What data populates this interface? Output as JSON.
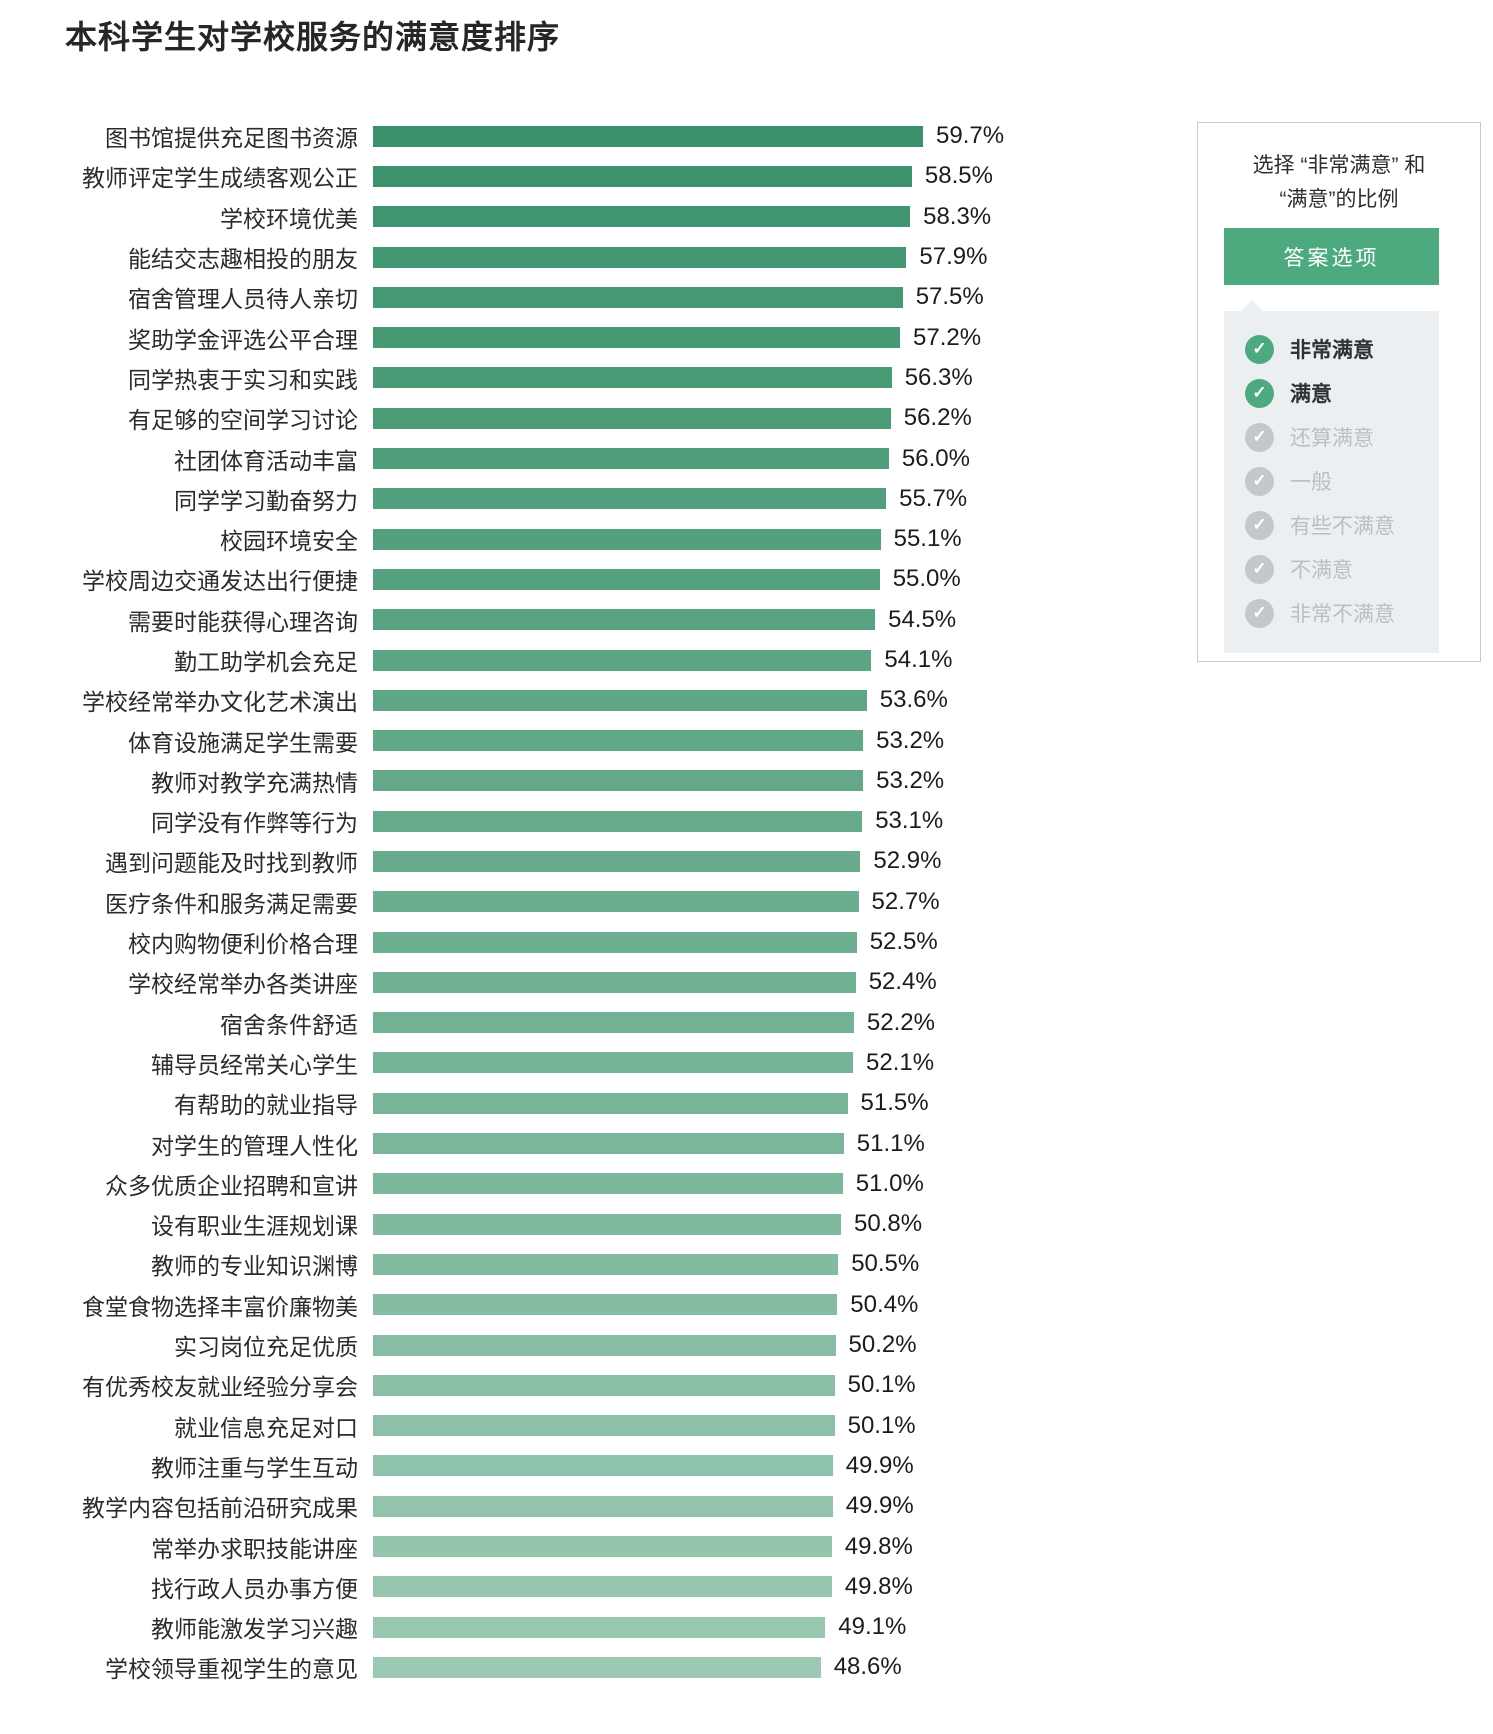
{
  "title": "本科学生对学校服务的满意度排序",
  "chart_data": {
    "type": "bar",
    "orientation": "horizontal",
    "title": "本科学生对学校服务的满意度排序",
    "xlabel": "",
    "ylabel": "",
    "unit": "%",
    "xlim": [
      0,
      60
    ],
    "grid": false,
    "value_labels_shown": true,
    "bar_color_top": "#3a926b",
    "bar_color_bottom": "#9cc9b3",
    "categories": [
      "图书馆提供充足图书资源",
      "教师评定学生成绩客观公正",
      "学校环境优美",
      "能结交志趣相投的朋友",
      "宿舍管理人员待人亲切",
      "奖助学金评选公平合理",
      "同学热衷于实习和实践",
      "有足够的空间学习讨论",
      "社团体育活动丰富",
      "同学学习勤奋努力",
      "校园环境安全",
      "学校周边交通发达出行便捷",
      "需要时能获得心理咨询",
      "勤工助学机会充足",
      "学校经常举办文化艺术演出",
      "体育设施满足学生需要",
      "教师对教学充满热情",
      "同学没有作弊等行为",
      "遇到问题能及时找到教师",
      "医疗条件和服务满足需要",
      "校内购物便利价格合理",
      "学校经常举办各类讲座",
      "宿舍条件舒适",
      "辅导员经常关心学生",
      "有帮助的就业指导",
      "对学生的管理人性化",
      "众多优质企业招聘和宣讲",
      "设有职业生涯规划课",
      "教师的专业知识渊博",
      "食堂食物选择丰富价廉物美",
      "实习岗位充足优质",
      "有优秀校友就业经验分享会",
      "就业信息充足对口",
      "教师注重与学生互动",
      "教学内容包括前沿研究成果",
      "常举办求职技能讲座",
      "找行政人员办事方便",
      "教师能激发学习兴趣",
      "学校领导重视学生的意见"
    ],
    "values": [
      59.7,
      58.5,
      58.3,
      57.9,
      57.5,
      57.2,
      56.3,
      56.2,
      56.0,
      55.7,
      55.1,
      55.0,
      54.5,
      54.1,
      53.6,
      53.2,
      53.2,
      53.1,
      52.9,
      52.7,
      52.5,
      52.4,
      52.2,
      52.1,
      51.5,
      51.1,
      51.0,
      50.8,
      50.5,
      50.4,
      50.2,
      50.1,
      50.1,
      49.9,
      49.9,
      49.8,
      49.8,
      49.1,
      48.6
    ]
  },
  "legend": {
    "heading": "选择 “非常满意” 和\n“满意”的比例",
    "button_label": "答案选项",
    "check_glyph": "✓",
    "options": [
      {
        "label": "非常满意",
        "selected": true
      },
      {
        "label": "满意",
        "selected": true
      },
      {
        "label": "还算满意",
        "selected": false
      },
      {
        "label": "一般",
        "selected": false
      },
      {
        "label": "有些不满意",
        "selected": false
      },
      {
        "label": "不满意",
        "selected": false
      },
      {
        "label": "非常不满意",
        "selected": false
      }
    ],
    "colors": {
      "accent_green": "#4daa7f",
      "unselected_gray": "#c2c8cc",
      "dropdown_bg": "#eceff2",
      "panel_border": "#c5cbcf"
    }
  }
}
